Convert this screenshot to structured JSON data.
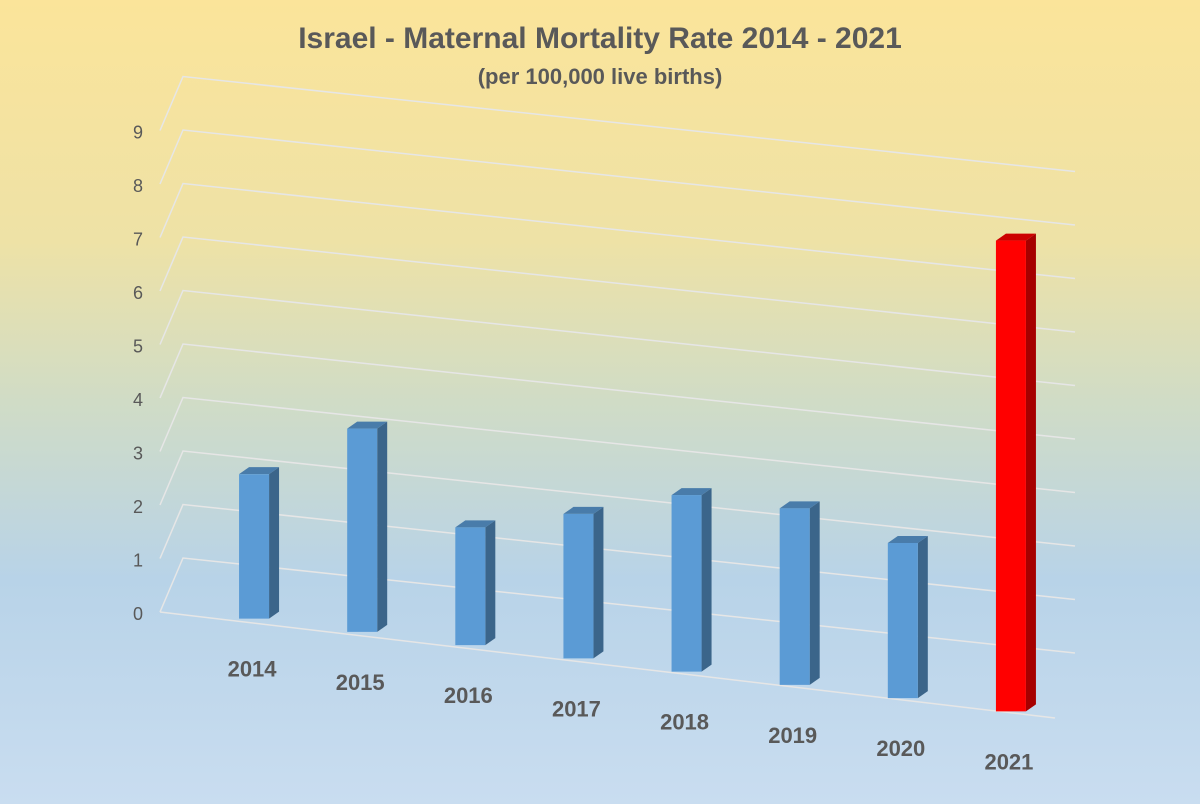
{
  "chart_data": {
    "type": "bar",
    "title": "Israel - Maternal Mortality Rate 2014 - 2021",
    "subtitle": "(per 100,000 live births)",
    "categories": [
      "2014",
      "2015",
      "2016",
      "2017",
      "2018",
      "2019",
      "2020",
      "2021"
    ],
    "values": [
      2.7,
      3.8,
      2.2,
      2.7,
      3.3,
      3.3,
      2.9,
      8.8
    ],
    "yticks": [
      "0",
      "1",
      "2",
      "3",
      "4",
      "5",
      "6",
      "7",
      "8",
      "9"
    ],
    "ylim": [
      0,
      9
    ],
    "xlabel": "",
    "ylabel": "",
    "grid": true,
    "legend": "none",
    "colors": {
      "default_bar": "#5b9bd5",
      "highlight_bar": "#ff0000",
      "gridline": "#e6e6e6",
      "text": "#595959"
    },
    "highlight_category": "2021"
  }
}
